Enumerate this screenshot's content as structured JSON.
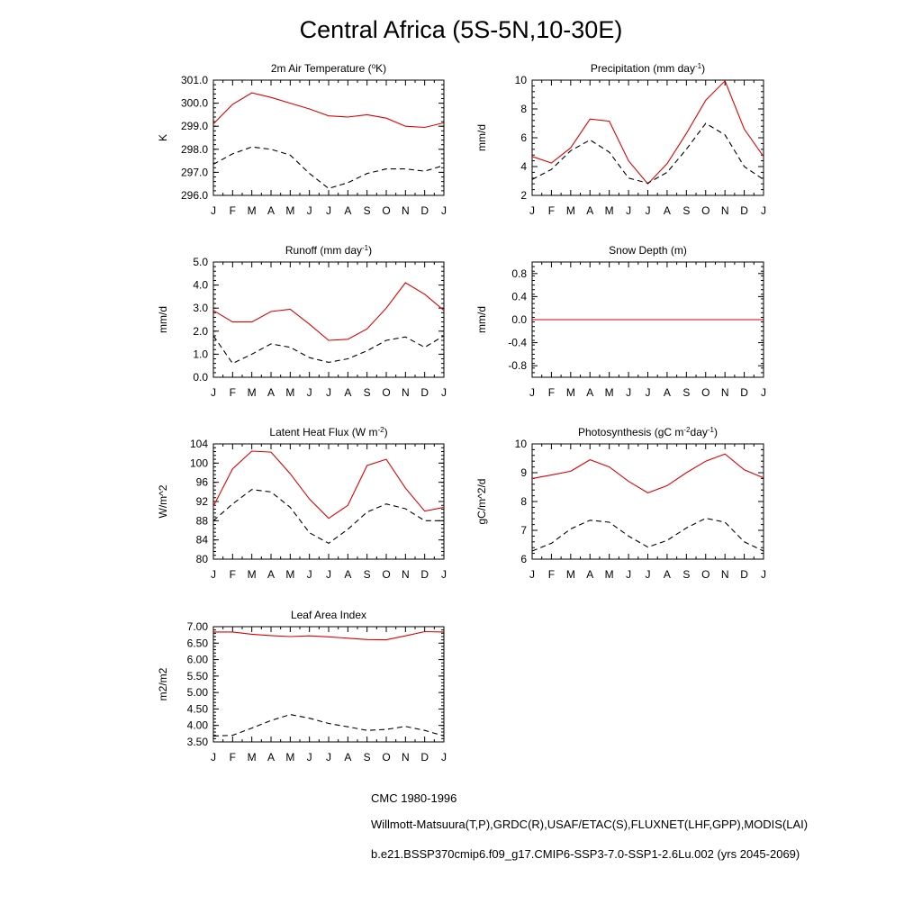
{
  "title": "Central Africa (5S-5N,10-30E)",
  "legend": [
    {
      "label": "CMC 1980-1996",
      "style": "dashed",
      "color": "#000000"
    },
    {
      "label": "Willmott-Matsuura(T,P),GRDC(R),USAF/ETAC(S),FLUXNET(LHF,GPP),MODIS(LAI)",
      "style": "dashed",
      "color": "#cc0000",
      "color2": "#0000cc"
    },
    {
      "label": "b.e21.BSSP370cmip6.f09_g17.CMIP6-SSP3-7.0-SSP1-2.6Lu.002 (yrs 2045-2069)",
      "style": "solid",
      "color": "#e00000"
    }
  ],
  "chart_data": [
    {
      "type": "line",
      "title_parts": [
        {
          "t": "2m Air Temperature ("
        },
        {
          "t": "o",
          "sup": true
        },
        {
          "t": "K)"
        }
      ],
      "ylabel": "K",
      "categories": [
        "J",
        "F",
        "M",
        "A",
        "M",
        "J",
        "J",
        "A",
        "S",
        "O",
        "N",
        "D",
        "J"
      ],
      "ylim": [
        296.0,
        301.0
      ],
      "yticks": [
        296.0,
        297.0,
        298.0,
        299.0,
        300.0,
        301.0
      ],
      "ytick_labels": [
        "296.0",
        "297.0",
        "298.0",
        "299.0",
        "300.0",
        "301.0"
      ],
      "series": [
        {
          "style": "solid",
          "color": "#e00000",
          "values": [
            299.1,
            299.95,
            300.45,
            300.25,
            300.0,
            299.75,
            299.45,
            299.4,
            299.5,
            299.35,
            299.0,
            298.95,
            299.15
          ]
        },
        {
          "style": "dashed",
          "color": "#000000",
          "values": [
            297.35,
            297.8,
            298.1,
            298.0,
            297.75,
            296.95,
            296.3,
            296.55,
            296.95,
            297.15,
            297.15,
            297.05,
            297.3
          ]
        }
      ]
    },
    {
      "type": "line",
      "title_parts": [
        {
          "t": "Precipitation (mm day"
        },
        {
          "t": "-1",
          "sup": true
        },
        {
          "t": ")"
        }
      ],
      "ylabel": "mm/d",
      "categories": [
        "J",
        "F",
        "M",
        "A",
        "M",
        "J",
        "J",
        "A",
        "S",
        "O",
        "N",
        "D",
        "J"
      ],
      "ylim": [
        2,
        10
      ],
      "yticks": [
        2,
        4,
        6,
        8,
        10
      ],
      "ytick_labels": [
        "2",
        "4",
        "6",
        "8",
        "10"
      ],
      "series": [
        {
          "style": "solid",
          "color": "#e00000",
          "values": [
            4.7,
            4.25,
            5.3,
            7.3,
            7.15,
            4.4,
            2.8,
            4.2,
            6.3,
            8.6,
            9.95,
            6.6,
            4.7
          ]
        },
        {
          "style": "dashed",
          "color": "#000000",
          "values": [
            3.1,
            3.8,
            5.1,
            5.85,
            5.0,
            3.2,
            2.85,
            3.6,
            5.2,
            7.0,
            6.2,
            4.0,
            3.1
          ]
        }
      ]
    },
    {
      "type": "line",
      "title_parts": [
        {
          "t": "Runoff (mm day"
        },
        {
          "t": "-1",
          "sup": true
        },
        {
          "t": ")"
        }
      ],
      "ylabel": "mm/d",
      "categories": [
        "J",
        "F",
        "M",
        "A",
        "M",
        "J",
        "J",
        "A",
        "S",
        "O",
        "N",
        "D",
        "J"
      ],
      "ylim": [
        0.0,
        5.0
      ],
      "yticks": [
        0.0,
        1.0,
        2.0,
        3.0,
        4.0,
        5.0
      ],
      "ytick_labels": [
        "0.0",
        "1.0",
        "2.0",
        "3.0",
        "4.0",
        "5.0"
      ],
      "series": [
        {
          "style": "solid",
          "color": "#e00000",
          "values": [
            2.9,
            2.4,
            2.4,
            2.85,
            2.95,
            2.3,
            1.6,
            1.65,
            2.1,
            3.0,
            4.1,
            3.6,
            2.9
          ]
        },
        {
          "style": "dashed",
          "color": "#000000",
          "values": [
            1.8,
            0.6,
            1.0,
            1.45,
            1.3,
            0.85,
            0.65,
            0.8,
            1.15,
            1.6,
            1.75,
            1.3,
            1.8
          ]
        }
      ]
    },
    {
      "type": "line",
      "title_parts": [
        {
          "t": "Snow Depth (m)"
        }
      ],
      "ylabel": "mm/d",
      "categories": [
        "J",
        "F",
        "M",
        "A",
        "M",
        "J",
        "J",
        "A",
        "S",
        "O",
        "N",
        "D",
        "J"
      ],
      "ylim": [
        -1.0,
        1.0
      ],
      "yticks": [
        -0.8,
        -0.4,
        0.0,
        0.4,
        0.8
      ],
      "ytick_labels": [
        "-0.8",
        "-0.4",
        "0.0",
        "0.4",
        "0.8"
      ],
      "series": [
        {
          "style": "dashed",
          "color": "#000000",
          "values": [
            0,
            0,
            0,
            0,
            0,
            0,
            0,
            0,
            0,
            0,
            0,
            0,
            0
          ]
        },
        {
          "style": "dashed",
          "color": "#0000cc",
          "values": [
            0,
            0,
            0,
            0,
            0,
            0,
            0,
            0,
            0,
            0,
            0,
            0,
            0
          ]
        },
        {
          "style": "solid",
          "color": "#e00000",
          "values": [
            0,
            0,
            0,
            0,
            0,
            0,
            0,
            0,
            0,
            0,
            0,
            0,
            0
          ]
        }
      ]
    },
    {
      "type": "line",
      "title_parts": [
        {
          "t": "Latent Heat Flux (W m"
        },
        {
          "t": "-2",
          "sup": true
        },
        {
          "t": ")"
        }
      ],
      "ylabel": "W/m^2",
      "categories": [
        "J",
        "F",
        "M",
        "A",
        "M",
        "J",
        "J",
        "A",
        "S",
        "O",
        "N",
        "D",
        "J"
      ],
      "ylim": [
        80,
        104
      ],
      "yticks": [
        80,
        84,
        88,
        92,
        96,
        100,
        104
      ],
      "ytick_labels": [
        "80",
        "84",
        "88",
        "92",
        "96",
        "100",
        "104"
      ],
      "series": [
        {
          "style": "solid",
          "color": "#e00000",
          "values": [
            91.0,
            98.8,
            102.5,
            102.3,
            97.8,
            92.5,
            88.5,
            91.2,
            99.5,
            100.8,
            94.8,
            90.0,
            90.8
          ]
        },
        {
          "style": "dashed",
          "color": "#000000",
          "values": [
            88.0,
            91.5,
            94.5,
            94.0,
            90.8,
            85.5,
            83.3,
            86.2,
            89.8,
            91.5,
            90.5,
            88.0,
            88.0
          ]
        }
      ]
    },
    {
      "type": "line",
      "title_parts": [
        {
          "t": "Photosynthesis (gC m"
        },
        {
          "t": "-2",
          "sup": true
        },
        {
          "t": "day"
        },
        {
          "t": "-1",
          "sup": true
        },
        {
          "t": ")"
        }
      ],
      "ylabel": "gC/m^2/d",
      "categories": [
        "J",
        "F",
        "M",
        "A",
        "M",
        "J",
        "J",
        "A",
        "S",
        "O",
        "N",
        "D",
        "J"
      ],
      "ylim": [
        6,
        10
      ],
      "yticks": [
        6,
        7,
        8,
        9,
        10
      ],
      "ytick_labels": [
        "6",
        "7",
        "8",
        "9",
        "10"
      ],
      "series": [
        {
          "style": "solid",
          "color": "#e00000",
          "values": [
            8.8,
            8.92,
            9.05,
            9.45,
            9.2,
            8.7,
            8.3,
            8.55,
            9.0,
            9.4,
            9.65,
            9.1,
            8.82
          ]
        },
        {
          "style": "dashed",
          "color": "#000000",
          "values": [
            6.28,
            6.55,
            7.05,
            7.35,
            7.28,
            6.8,
            6.42,
            6.65,
            7.08,
            7.42,
            7.28,
            6.6,
            6.28
          ]
        }
      ]
    },
    {
      "type": "line",
      "title_parts": [
        {
          "t": "Leaf Area Index"
        }
      ],
      "ylabel": "m2/m2",
      "categories": [
        "J",
        "F",
        "M",
        "A",
        "M",
        "J",
        "J",
        "A",
        "S",
        "O",
        "N",
        "D",
        "J"
      ],
      "ylim": [
        3.5,
        7.0
      ],
      "yticks": [
        3.5,
        4.0,
        4.5,
        5.0,
        5.5,
        6.0,
        6.5,
        7.0
      ],
      "ytick_labels": [
        "3.50",
        "4.00",
        "4.50",
        "5.00",
        "5.50",
        "6.00",
        "6.50",
        "7.00"
      ],
      "series": [
        {
          "style": "solid",
          "color": "#e00000",
          "values": [
            6.84,
            6.84,
            6.77,
            6.73,
            6.7,
            6.72,
            6.69,
            6.65,
            6.61,
            6.6,
            6.72,
            6.85,
            6.84
          ]
        },
        {
          "style": "dashed",
          "color": "#000000",
          "values": [
            3.68,
            3.7,
            3.92,
            4.15,
            4.33,
            4.22,
            4.06,
            3.96,
            3.85,
            3.88,
            3.97,
            3.85,
            3.68
          ]
        }
      ]
    }
  ]
}
